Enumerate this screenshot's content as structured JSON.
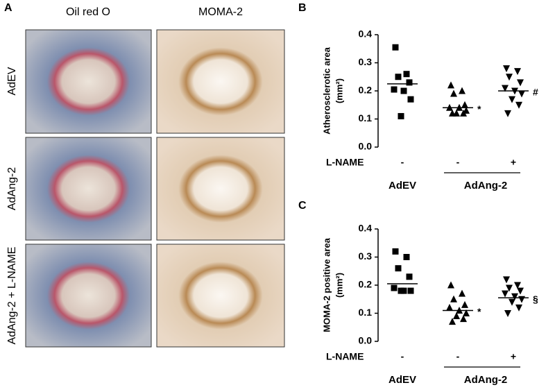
{
  "panel_a": {
    "label": "A",
    "columns": [
      "Oil red O",
      "MOMA-2"
    ],
    "rows": [
      "AdEV",
      "AdAng-2",
      "AdAng-2 + L-NAME"
    ]
  },
  "chart_data": [
    {
      "type": "dot",
      "panel": "B",
      "ylabel": [
        "Atherosclerotic area",
        "(mm²)"
      ],
      "ylim": [
        0,
        0.4
      ],
      "yticks": [
        {
          "value": 0,
          "label": "0.0"
        },
        0.1,
        0.2,
        0.3,
        0.4
      ],
      "row_label": "L-NAME",
      "color": "#000000",
      "groups": [
        {
          "name": "AdEV",
          "series": [
            {
              "name": "-",
              "marker": "square",
              "mean": 0.225,
              "values": [
                0.355,
                0.26,
                0.25,
                0.23,
                0.205,
                0.2,
                0.17,
                0.11
              ]
            }
          ]
        },
        {
          "name": "AdAng-2",
          "series": [
            {
              "name": "-",
              "marker": "triangle",
              "mean": 0.14,
              "annotation": "*",
              "values": [
                0.22,
                0.2,
                0.19,
                0.15,
                0.14,
                0.14,
                0.13,
                0.12,
                0.12,
                0.12
              ]
            },
            {
              "name": "+",
              "marker": "triangle-down",
              "mean": 0.2,
              "annotation": "#",
              "values": [
                0.28,
                0.27,
                0.25,
                0.23,
                0.21,
                0.2,
                0.19,
                0.17,
                0.15,
                0.12
              ]
            }
          ]
        }
      ]
    },
    {
      "type": "dot",
      "panel": "C",
      "ylabel": [
        "MOMA-2 positive area",
        "(mm²)"
      ],
      "ylim": [
        0,
        0.4
      ],
      "yticks": [
        {
          "value": 0,
          "label": "0.0"
        },
        0.1,
        0.2,
        0.3,
        0.4
      ],
      "row_label": "L-NAME",
      "color": "#000000",
      "groups": [
        {
          "name": "AdEV",
          "series": [
            {
              "name": "-",
              "marker": "square",
              "mean": 0.205,
              "values": [
                0.32,
                0.3,
                0.26,
                0.23,
                0.19,
                0.18,
                0.18,
                0.18
              ]
            }
          ]
        },
        {
          "name": "AdAng-2",
          "series": [
            {
              "name": "-",
              "marker": "triangle",
              "mean": 0.11,
              "annotation": "*",
              "values": [
                0.2,
                0.17,
                0.15,
                0.13,
                0.12,
                0.11,
                0.1,
                0.09,
                0.08,
                0.07
              ]
            },
            {
              "name": "+",
              "marker": "triangle-down",
              "mean": 0.155,
              "annotation": "§",
              "values": [
                0.22,
                0.2,
                0.19,
                0.18,
                0.17,
                0.16,
                0.15,
                0.14,
                0.12,
                0.1
              ]
            }
          ]
        }
      ]
    }
  ]
}
